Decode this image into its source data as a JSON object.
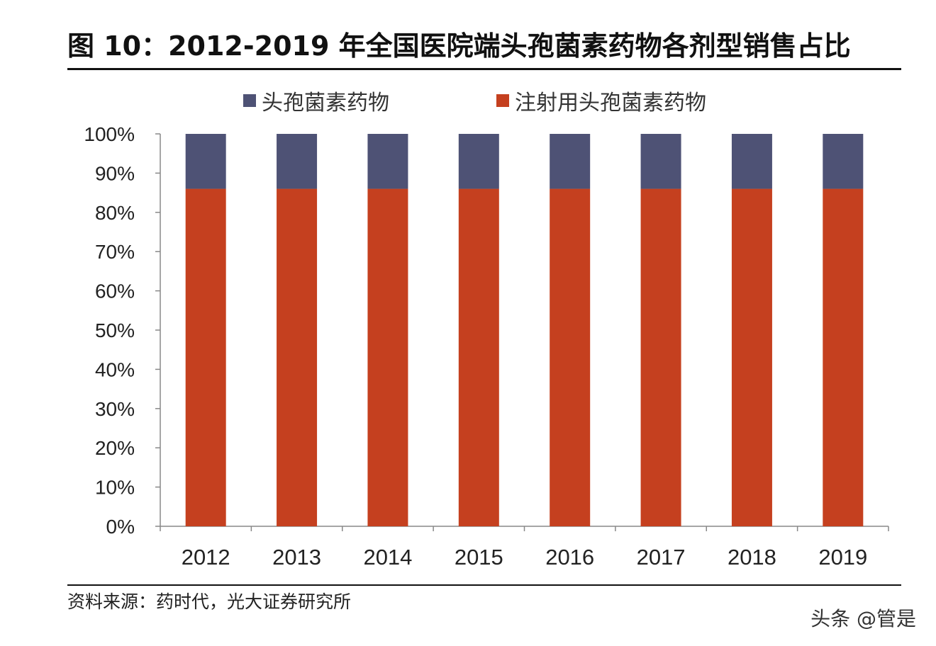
{
  "title": "图 10：2012-2019 年全国医院端头孢菌素药物各剂型销售占比",
  "source": "资料来源：药时代，光大证券研究所",
  "watermark": "头条 @管是",
  "chart_data": {
    "type": "bar",
    "stacked": true,
    "percent": true,
    "categories": [
      "2012",
      "2013",
      "2014",
      "2015",
      "2016",
      "2017",
      "2018",
      "2019"
    ],
    "series": [
      {
        "name": "注射用头孢菌素药物",
        "color": "#c5401f",
        "values": [
          86,
          86,
          86,
          86,
          86,
          86,
          86,
          86
        ]
      },
      {
        "name": "头孢菌素药物",
        "color": "#4e5275",
        "values": [
          14,
          14,
          14,
          14,
          14,
          14,
          14,
          14
        ]
      }
    ],
    "legend_order": [
      "头孢菌素药物",
      "注射用头孢菌素药物"
    ],
    "yticks": [
      "0%",
      "10%",
      "20%",
      "30%",
      "40%",
      "50%",
      "60%",
      "70%",
      "80%",
      "90%",
      "100%"
    ],
    "ylim": [
      0,
      100
    ],
    "legend_placement": "top",
    "grid": false
  }
}
